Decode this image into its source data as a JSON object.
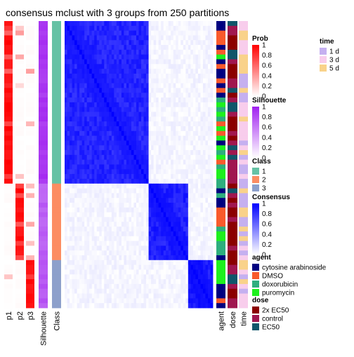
{
  "chart_data": {
    "type": "heatmap",
    "title": "consensus mclust with 3 groups from 250 partitions",
    "n_samples": 60,
    "groups": [
      {
        "class": "1",
        "n": 34
      },
      {
        "class": "2",
        "n": 16
      },
      {
        "class": "3",
        "n": 10
      }
    ],
    "prob_columns": [
      "p1",
      "p2",
      "p3"
    ],
    "left_columns": [
      "p1",
      "p2",
      "p3",
      "Silhouette",
      "Class"
    ],
    "right_columns": [
      "agent",
      "dose",
      "time"
    ],
    "within_group_consensus": [
      0.93,
      0.95,
      0.97
    ],
    "silhouette_by_group": [
      0.9,
      0.72,
      0.75
    ],
    "legends": {
      "prob": {
        "title": "Prob",
        "ticks": [
          "1",
          "0.8",
          "0.6",
          "0.4",
          "0.2",
          "0"
        ],
        "low": "#ffffff",
        "high": "#ff0000"
      },
      "silhouette": {
        "title": "Silhouette",
        "ticks": [
          "1",
          "0.8",
          "0.6",
          "0.4",
          "0.2",
          "0"
        ],
        "low": "#ffffff",
        "high": "#a020f0"
      },
      "class": {
        "title": "Class",
        "items": [
          {
            "label": "1",
            "color": "#66c2a5"
          },
          {
            "label": "2",
            "color": "#fc8d62"
          },
          {
            "label": "3",
            "color": "#8da0cb"
          }
        ]
      },
      "consensus": {
        "title": "Consensus",
        "ticks": [
          "1",
          "0.8",
          "0.6",
          "0.4",
          "0.2",
          "0"
        ],
        "low": "#ffffff",
        "high": "#0000ff"
      },
      "time": {
        "title": "time",
        "items": [
          {
            "label": "1 d",
            "color": "#c5b0f0"
          },
          {
            "label": "3 d",
            "color": "#f8cdec"
          },
          {
            "label": "5 d",
            "color": "#f9d28a"
          }
        ]
      },
      "agent": {
        "title": "agent",
        "items": [
          {
            "label": "cytosine arabinoside",
            "color": "#000080"
          },
          {
            "label": "DMSO",
            "color": "#f95a2c"
          },
          {
            "label": "doxorubicin",
            "color": "#2eae7e"
          },
          {
            "label": "puromycin",
            "color": "#1ef01e"
          }
        ]
      },
      "dose": {
        "title": "dose",
        "items": [
          {
            "label": "2x EC50",
            "color": "#8b0000"
          },
          {
            "label": "control",
            "color": "#a0174f"
          },
          {
            "label": "EC50",
            "color": "#10566a"
          }
        ]
      }
    }
  }
}
